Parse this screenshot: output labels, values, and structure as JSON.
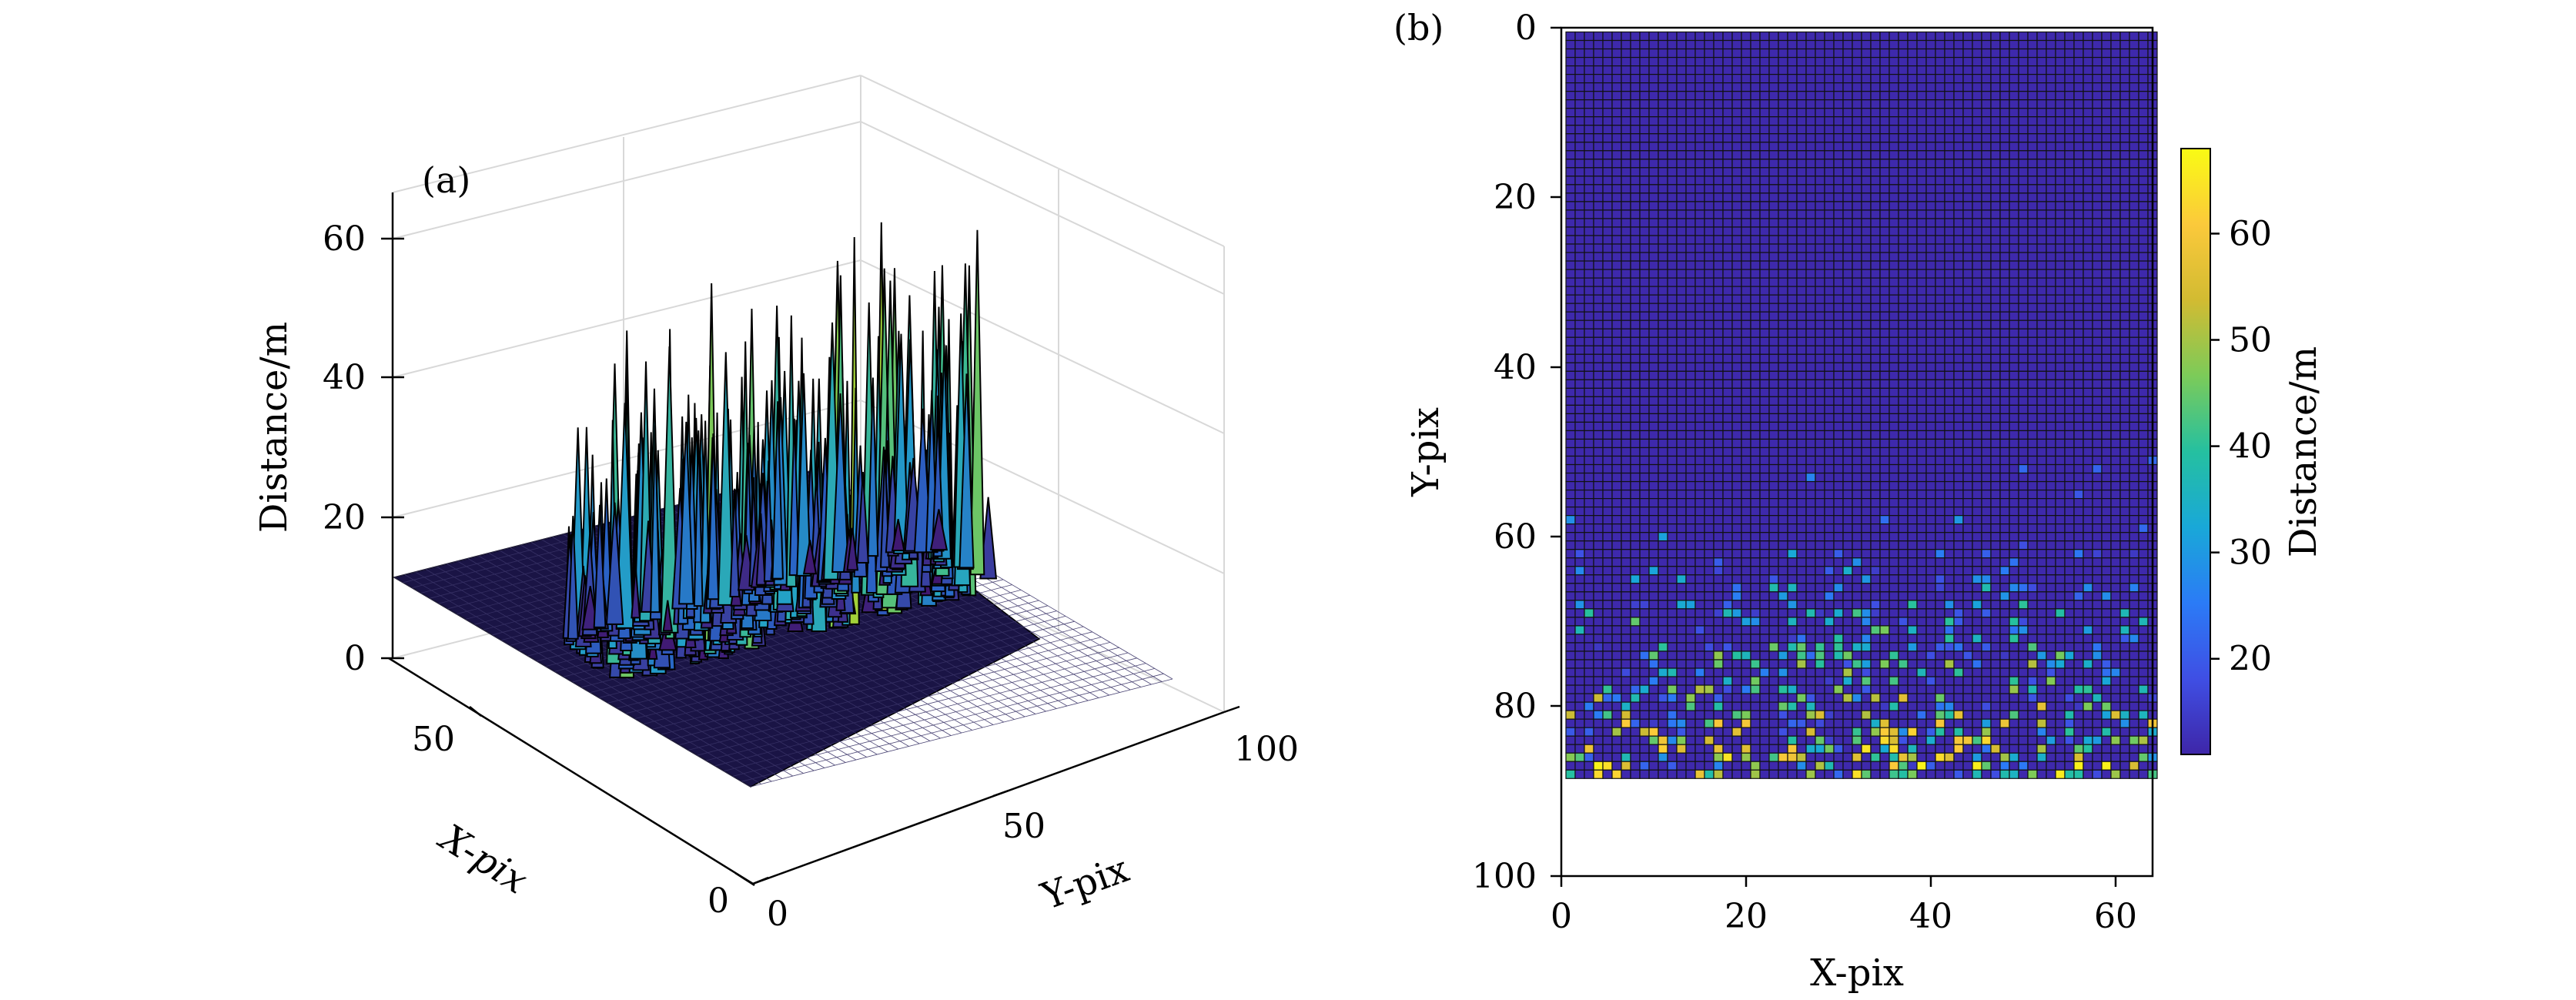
{
  "chart_data": [
    {
      "type": "surface3d",
      "panel_label": "(a)",
      "zlabel": "Distance/m",
      "xlabel": "X-pix",
      "ylabel": "Y-pix",
      "z_ticks": [
        "0",
        "20",
        "40",
        "60"
      ],
      "x_ticks": [
        "0",
        "50"
      ],
      "y_ticks": [
        "0",
        "50",
        "100"
      ],
      "xlim": [
        0,
        64
      ],
      "ylim": [
        0,
        100
      ],
      "zlim": [
        0,
        66
      ],
      "base_value": 11.5,
      "max_value": 67,
      "grid": true,
      "colormap": [
        "#440154",
        "#3b3a9a",
        "#2a63c6",
        "#22a0c8",
        "#3dbb8f",
        "#9fd03a",
        "#fde725"
      ]
    },
    {
      "type": "heatmap",
      "panel_label": "(b)",
      "xlabel": "X-pix",
      "ylabel": "Y-pix",
      "x_ticks": [
        "0",
        "20",
        "40",
        "60"
      ],
      "y_ticks": [
        "0",
        "20",
        "40",
        "60",
        "80",
        "100"
      ],
      "xlim": [
        0,
        64
      ],
      "ylim": [
        100,
        0
      ],
      "data_rows": [
        1,
        88
      ],
      "data_cols": [
        1,
        64
      ],
      "base_value": 11.5,
      "colorbar": {
        "label": "Distance/m",
        "ticks": [
          "20",
          "30",
          "40",
          "50",
          "60"
        ],
        "range": [
          11,
          68
        ],
        "colors": [
          "#3e26a8",
          "#3f4fe4",
          "#2b7bf6",
          "#19a8d8",
          "#25c0a0",
          "#7ccb59",
          "#d2bb32",
          "#fbc93b",
          "#f9fb14"
        ]
      }
    }
  ]
}
